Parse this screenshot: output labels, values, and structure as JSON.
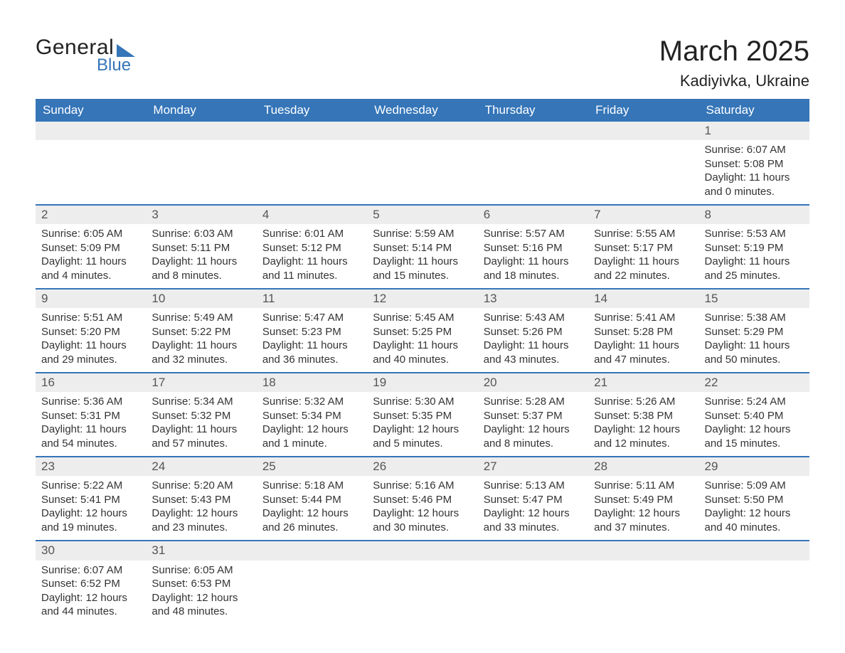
{
  "brand": {
    "word1": "General",
    "word2": "Blue"
  },
  "header": {
    "title": "March 2025",
    "location": "Kadiyivka, Ukraine"
  },
  "style": {
    "header_bg": "#3575b8",
    "header_text": "#ffffff",
    "daynum_bg": "#ededed",
    "row_divider": "#3575b8",
    "body_text": "#333333",
    "page_bg": "#ffffff",
    "title_fontsize": 40,
    "location_fontsize": 22,
    "th_fontsize": 17,
    "cell_fontsize": 15
  },
  "weekdays": [
    "Sunday",
    "Monday",
    "Tuesday",
    "Wednesday",
    "Thursday",
    "Friday",
    "Saturday"
  ],
  "weeks": [
    [
      null,
      null,
      null,
      null,
      null,
      null,
      {
        "n": "1",
        "sr": "Sunrise: 6:07 AM",
        "ss": "Sunset: 5:08 PM",
        "d1": "Daylight: 11 hours",
        "d2": "and 0 minutes."
      }
    ],
    [
      {
        "n": "2",
        "sr": "Sunrise: 6:05 AM",
        "ss": "Sunset: 5:09 PM",
        "d1": "Daylight: 11 hours",
        "d2": "and 4 minutes."
      },
      {
        "n": "3",
        "sr": "Sunrise: 6:03 AM",
        "ss": "Sunset: 5:11 PM",
        "d1": "Daylight: 11 hours",
        "d2": "and 8 minutes."
      },
      {
        "n": "4",
        "sr": "Sunrise: 6:01 AM",
        "ss": "Sunset: 5:12 PM",
        "d1": "Daylight: 11 hours",
        "d2": "and 11 minutes."
      },
      {
        "n": "5",
        "sr": "Sunrise: 5:59 AM",
        "ss": "Sunset: 5:14 PM",
        "d1": "Daylight: 11 hours",
        "d2": "and 15 minutes."
      },
      {
        "n": "6",
        "sr": "Sunrise: 5:57 AM",
        "ss": "Sunset: 5:16 PM",
        "d1": "Daylight: 11 hours",
        "d2": "and 18 minutes."
      },
      {
        "n": "7",
        "sr": "Sunrise: 5:55 AM",
        "ss": "Sunset: 5:17 PM",
        "d1": "Daylight: 11 hours",
        "d2": "and 22 minutes."
      },
      {
        "n": "8",
        "sr": "Sunrise: 5:53 AM",
        "ss": "Sunset: 5:19 PM",
        "d1": "Daylight: 11 hours",
        "d2": "and 25 minutes."
      }
    ],
    [
      {
        "n": "9",
        "sr": "Sunrise: 5:51 AM",
        "ss": "Sunset: 5:20 PM",
        "d1": "Daylight: 11 hours",
        "d2": "and 29 minutes."
      },
      {
        "n": "10",
        "sr": "Sunrise: 5:49 AM",
        "ss": "Sunset: 5:22 PM",
        "d1": "Daylight: 11 hours",
        "d2": "and 32 minutes."
      },
      {
        "n": "11",
        "sr": "Sunrise: 5:47 AM",
        "ss": "Sunset: 5:23 PM",
        "d1": "Daylight: 11 hours",
        "d2": "and 36 minutes."
      },
      {
        "n": "12",
        "sr": "Sunrise: 5:45 AM",
        "ss": "Sunset: 5:25 PM",
        "d1": "Daylight: 11 hours",
        "d2": "and 40 minutes."
      },
      {
        "n": "13",
        "sr": "Sunrise: 5:43 AM",
        "ss": "Sunset: 5:26 PM",
        "d1": "Daylight: 11 hours",
        "d2": "and 43 minutes."
      },
      {
        "n": "14",
        "sr": "Sunrise: 5:41 AM",
        "ss": "Sunset: 5:28 PM",
        "d1": "Daylight: 11 hours",
        "d2": "and 47 minutes."
      },
      {
        "n": "15",
        "sr": "Sunrise: 5:38 AM",
        "ss": "Sunset: 5:29 PM",
        "d1": "Daylight: 11 hours",
        "d2": "and 50 minutes."
      }
    ],
    [
      {
        "n": "16",
        "sr": "Sunrise: 5:36 AM",
        "ss": "Sunset: 5:31 PM",
        "d1": "Daylight: 11 hours",
        "d2": "and 54 minutes."
      },
      {
        "n": "17",
        "sr": "Sunrise: 5:34 AM",
        "ss": "Sunset: 5:32 PM",
        "d1": "Daylight: 11 hours",
        "d2": "and 57 minutes."
      },
      {
        "n": "18",
        "sr": "Sunrise: 5:32 AM",
        "ss": "Sunset: 5:34 PM",
        "d1": "Daylight: 12 hours",
        "d2": "and 1 minute."
      },
      {
        "n": "19",
        "sr": "Sunrise: 5:30 AM",
        "ss": "Sunset: 5:35 PM",
        "d1": "Daylight: 12 hours",
        "d2": "and 5 minutes."
      },
      {
        "n": "20",
        "sr": "Sunrise: 5:28 AM",
        "ss": "Sunset: 5:37 PM",
        "d1": "Daylight: 12 hours",
        "d2": "and 8 minutes."
      },
      {
        "n": "21",
        "sr": "Sunrise: 5:26 AM",
        "ss": "Sunset: 5:38 PM",
        "d1": "Daylight: 12 hours",
        "d2": "and 12 minutes."
      },
      {
        "n": "22",
        "sr": "Sunrise: 5:24 AM",
        "ss": "Sunset: 5:40 PM",
        "d1": "Daylight: 12 hours",
        "d2": "and 15 minutes."
      }
    ],
    [
      {
        "n": "23",
        "sr": "Sunrise: 5:22 AM",
        "ss": "Sunset: 5:41 PM",
        "d1": "Daylight: 12 hours",
        "d2": "and 19 minutes."
      },
      {
        "n": "24",
        "sr": "Sunrise: 5:20 AM",
        "ss": "Sunset: 5:43 PM",
        "d1": "Daylight: 12 hours",
        "d2": "and 23 minutes."
      },
      {
        "n": "25",
        "sr": "Sunrise: 5:18 AM",
        "ss": "Sunset: 5:44 PM",
        "d1": "Daylight: 12 hours",
        "d2": "and 26 minutes."
      },
      {
        "n": "26",
        "sr": "Sunrise: 5:16 AM",
        "ss": "Sunset: 5:46 PM",
        "d1": "Daylight: 12 hours",
        "d2": "and 30 minutes."
      },
      {
        "n": "27",
        "sr": "Sunrise: 5:13 AM",
        "ss": "Sunset: 5:47 PM",
        "d1": "Daylight: 12 hours",
        "d2": "and 33 minutes."
      },
      {
        "n": "28",
        "sr": "Sunrise: 5:11 AM",
        "ss": "Sunset: 5:49 PM",
        "d1": "Daylight: 12 hours",
        "d2": "and 37 minutes."
      },
      {
        "n": "29",
        "sr": "Sunrise: 5:09 AM",
        "ss": "Sunset: 5:50 PM",
        "d1": "Daylight: 12 hours",
        "d2": "and 40 minutes."
      }
    ],
    [
      {
        "n": "30",
        "sr": "Sunrise: 6:07 AM",
        "ss": "Sunset: 6:52 PM",
        "d1": "Daylight: 12 hours",
        "d2": "and 44 minutes."
      },
      {
        "n": "31",
        "sr": "Sunrise: 6:05 AM",
        "ss": "Sunset: 6:53 PM",
        "d1": "Daylight: 12 hours",
        "d2": "and 48 minutes."
      },
      null,
      null,
      null,
      null,
      null
    ]
  ]
}
